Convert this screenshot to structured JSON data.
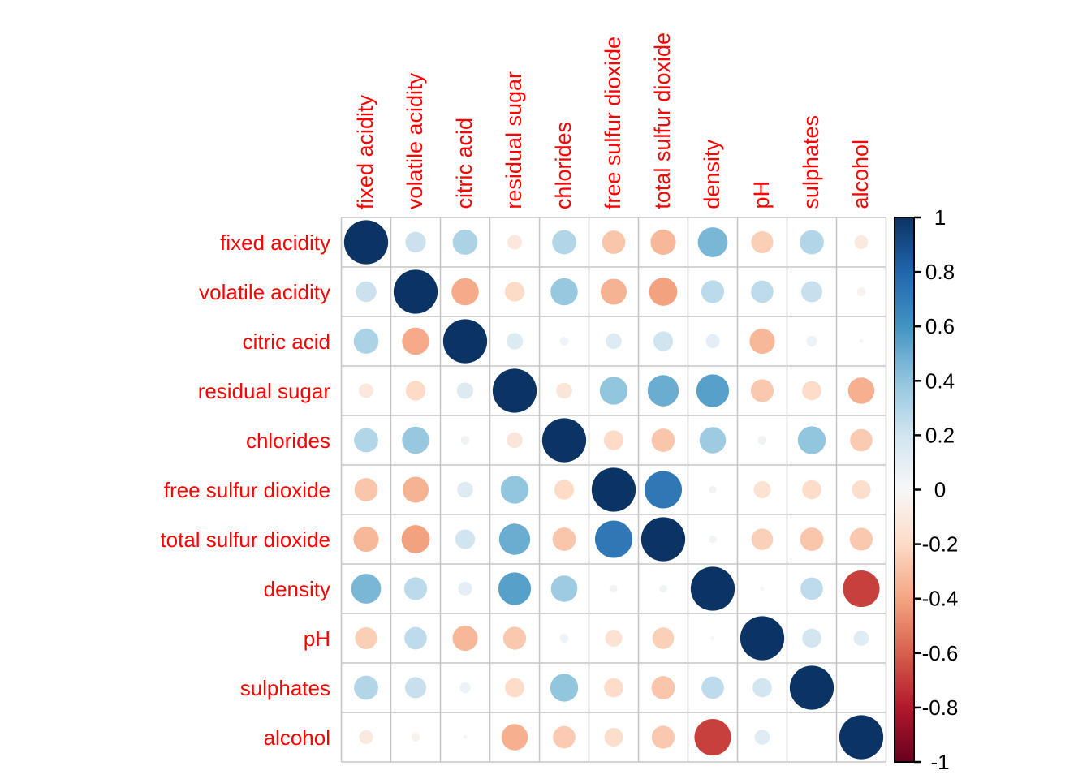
{
  "figure": {
    "background": "#ffffff",
    "axis_label_color": "#ff0000",
    "legend_text_color": "#000000",
    "grid_color": "#c6c6c6"
  },
  "chart_data": {
    "type": "heatmap",
    "subtype": "correlation-matrix-circles",
    "title": "",
    "variables": [
      "fixed acidity",
      "volatile acidity",
      "citric acid",
      "residual sugar",
      "chlorides",
      "free sulfur dioxide",
      "total sulfur dioxide",
      "density",
      "pH",
      "sulphates",
      "alcohol"
    ],
    "matrix": [
      [
        1,
        0.22,
        0.32,
        -0.11,
        0.3,
        -0.28,
        -0.33,
        0.46,
        -0.25,
        0.3,
        -0.1
      ],
      [
        0.22,
        1,
        -0.38,
        -0.2,
        0.38,
        -0.35,
        -0.41,
        0.27,
        0.26,
        0.23,
        -0.04
      ],
      [
        0.32,
        -0.38,
        1,
        0.14,
        0.04,
        0.13,
        0.2,
        0.1,
        -0.33,
        0.06,
        -0.01
      ],
      [
        -0.11,
        -0.2,
        0.14,
        1,
        -0.13,
        0.4,
        0.5,
        0.55,
        -0.27,
        -0.19,
        -0.36
      ],
      [
        0.3,
        0.38,
        0.04,
        -0.13,
        1,
        -0.2,
        -0.28,
        0.36,
        0.04,
        0.4,
        -0.26
      ],
      [
        -0.28,
        -0.35,
        0.13,
        0.4,
        -0.2,
        1,
        0.72,
        0.03,
        -0.15,
        -0.19,
        -0.18
      ],
      [
        -0.33,
        -0.41,
        0.2,
        0.5,
        -0.28,
        0.72,
        1,
        0.03,
        -0.24,
        -0.28,
        -0.27
      ],
      [
        0.46,
        0.27,
        0.1,
        0.55,
        0.36,
        0.03,
        0.03,
        1,
        0.01,
        0.26,
        -0.69
      ],
      [
        -0.25,
        0.26,
        -0.33,
        -0.27,
        0.04,
        -0.15,
        -0.24,
        0.01,
        1,
        0.19,
        0.12
      ],
      [
        0.3,
        0.23,
        0.06,
        -0.19,
        0.4,
        -0.19,
        -0.28,
        0.26,
        0.19,
        1,
        0.0
      ],
      [
        -0.1,
        -0.04,
        -0.01,
        -0.36,
        -0.26,
        -0.18,
        -0.27,
        -0.69,
        0.12,
        0.0,
        1
      ]
    ],
    "value_range": [
      -1,
      1
    ],
    "legend_position": "right",
    "legend_ticks": [
      "1",
      "0.8",
      "0.6",
      "0.4",
      "0.2",
      "0",
      "-0.2",
      "-0.4",
      "-0.6",
      "-0.8",
      "-1"
    ],
    "palette_rdbu_neg_to_pos": [
      "#67001F",
      "#B2182B",
      "#D6604D",
      "#F4A582",
      "#FDDBC7",
      "#F7F7F7",
      "#D1E5F0",
      "#92C5DE",
      "#4393C3",
      "#2166AC",
      "#0B3363"
    ],
    "grid": true,
    "size_encoding": "circle diameter proportional to sqrt(|r|)"
  }
}
